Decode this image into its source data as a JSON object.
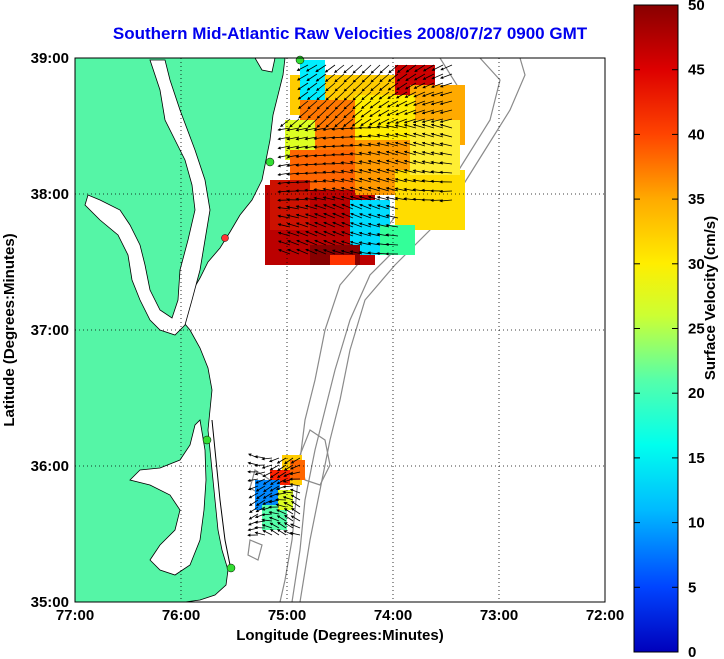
{
  "title": "Southern Mid-Atlantic Raw Velocities 2008/07/27 0900 GMT",
  "xlabel": "Longitude (Degrees:Minutes)",
  "ylabel": "Latitude (Degrees:Minutes)",
  "colorbar_label": "Surface Velocity (cm/s)",
  "x_ticks": [
    "77:00",
    "76:00",
    "75:00",
    "74:00",
    "73:00",
    "72:00"
  ],
  "y_ticks": [
    "39:00",
    "38:00",
    "37:00",
    "36:00",
    "35:00"
  ],
  "colorbar_ticks": [
    "0",
    "5",
    "10",
    "15",
    "20",
    "25",
    "30",
    "35",
    "40",
    "45",
    "50"
  ],
  "colors": {
    "land": "#55f5a6",
    "water": "#ffffff",
    "title": "#0000ee",
    "contour": "#8a8a8a",
    "station": "#33dd33"
  },
  "map_extent": {
    "lon_min": -77,
    "lon_max": -72,
    "lat_min": 35,
    "lat_max": 39
  },
  "colorbar_range": [
    0,
    50
  ],
  "grid": true
}
